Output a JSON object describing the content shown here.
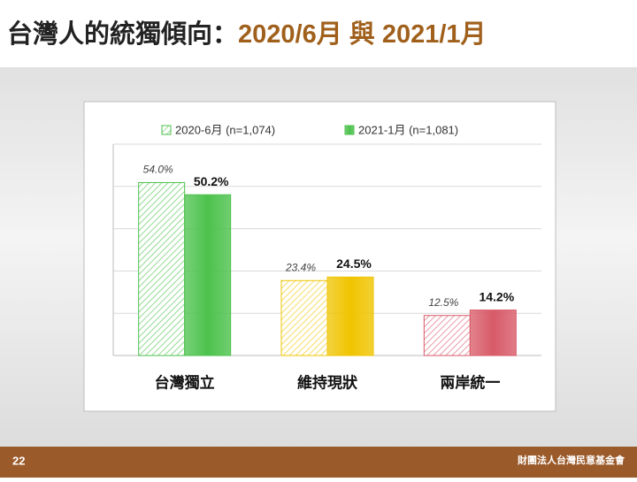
{
  "header": {
    "title": "台灣人的統獨傾向：",
    "title_highlight": "2020/6月 與 2021/1月"
  },
  "chart_data": {
    "type": "bar",
    "categories": [
      "台灣獨立",
      "維持現狀",
      "兩岸統一"
    ],
    "category_colors": [
      "#4cc24c",
      "#f0c400",
      "#d85a68"
    ],
    "series": [
      {
        "name": "2020-6月 (n=1,074)",
        "color": "#4cc24c",
        "pattern": "hatched",
        "values": [
          54.0,
          23.4,
          12.5
        ],
        "value_labels": [
          "54.0%",
          "23.4%",
          "12.5%"
        ]
      },
      {
        "name": "2021-1月 (n=1,081)",
        "color": "#4cc24c",
        "pattern": "solid",
        "values": [
          50.2,
          24.5,
          14.2
        ],
        "value_labels": [
          "50.2%",
          "24.5%",
          "14.2%"
        ]
      }
    ],
    "ylim": [
      0,
      66
    ],
    "grid": true,
    "legend": "top"
  },
  "footer": {
    "page": "22",
    "organization": "財團法人台灣民意基金會"
  }
}
